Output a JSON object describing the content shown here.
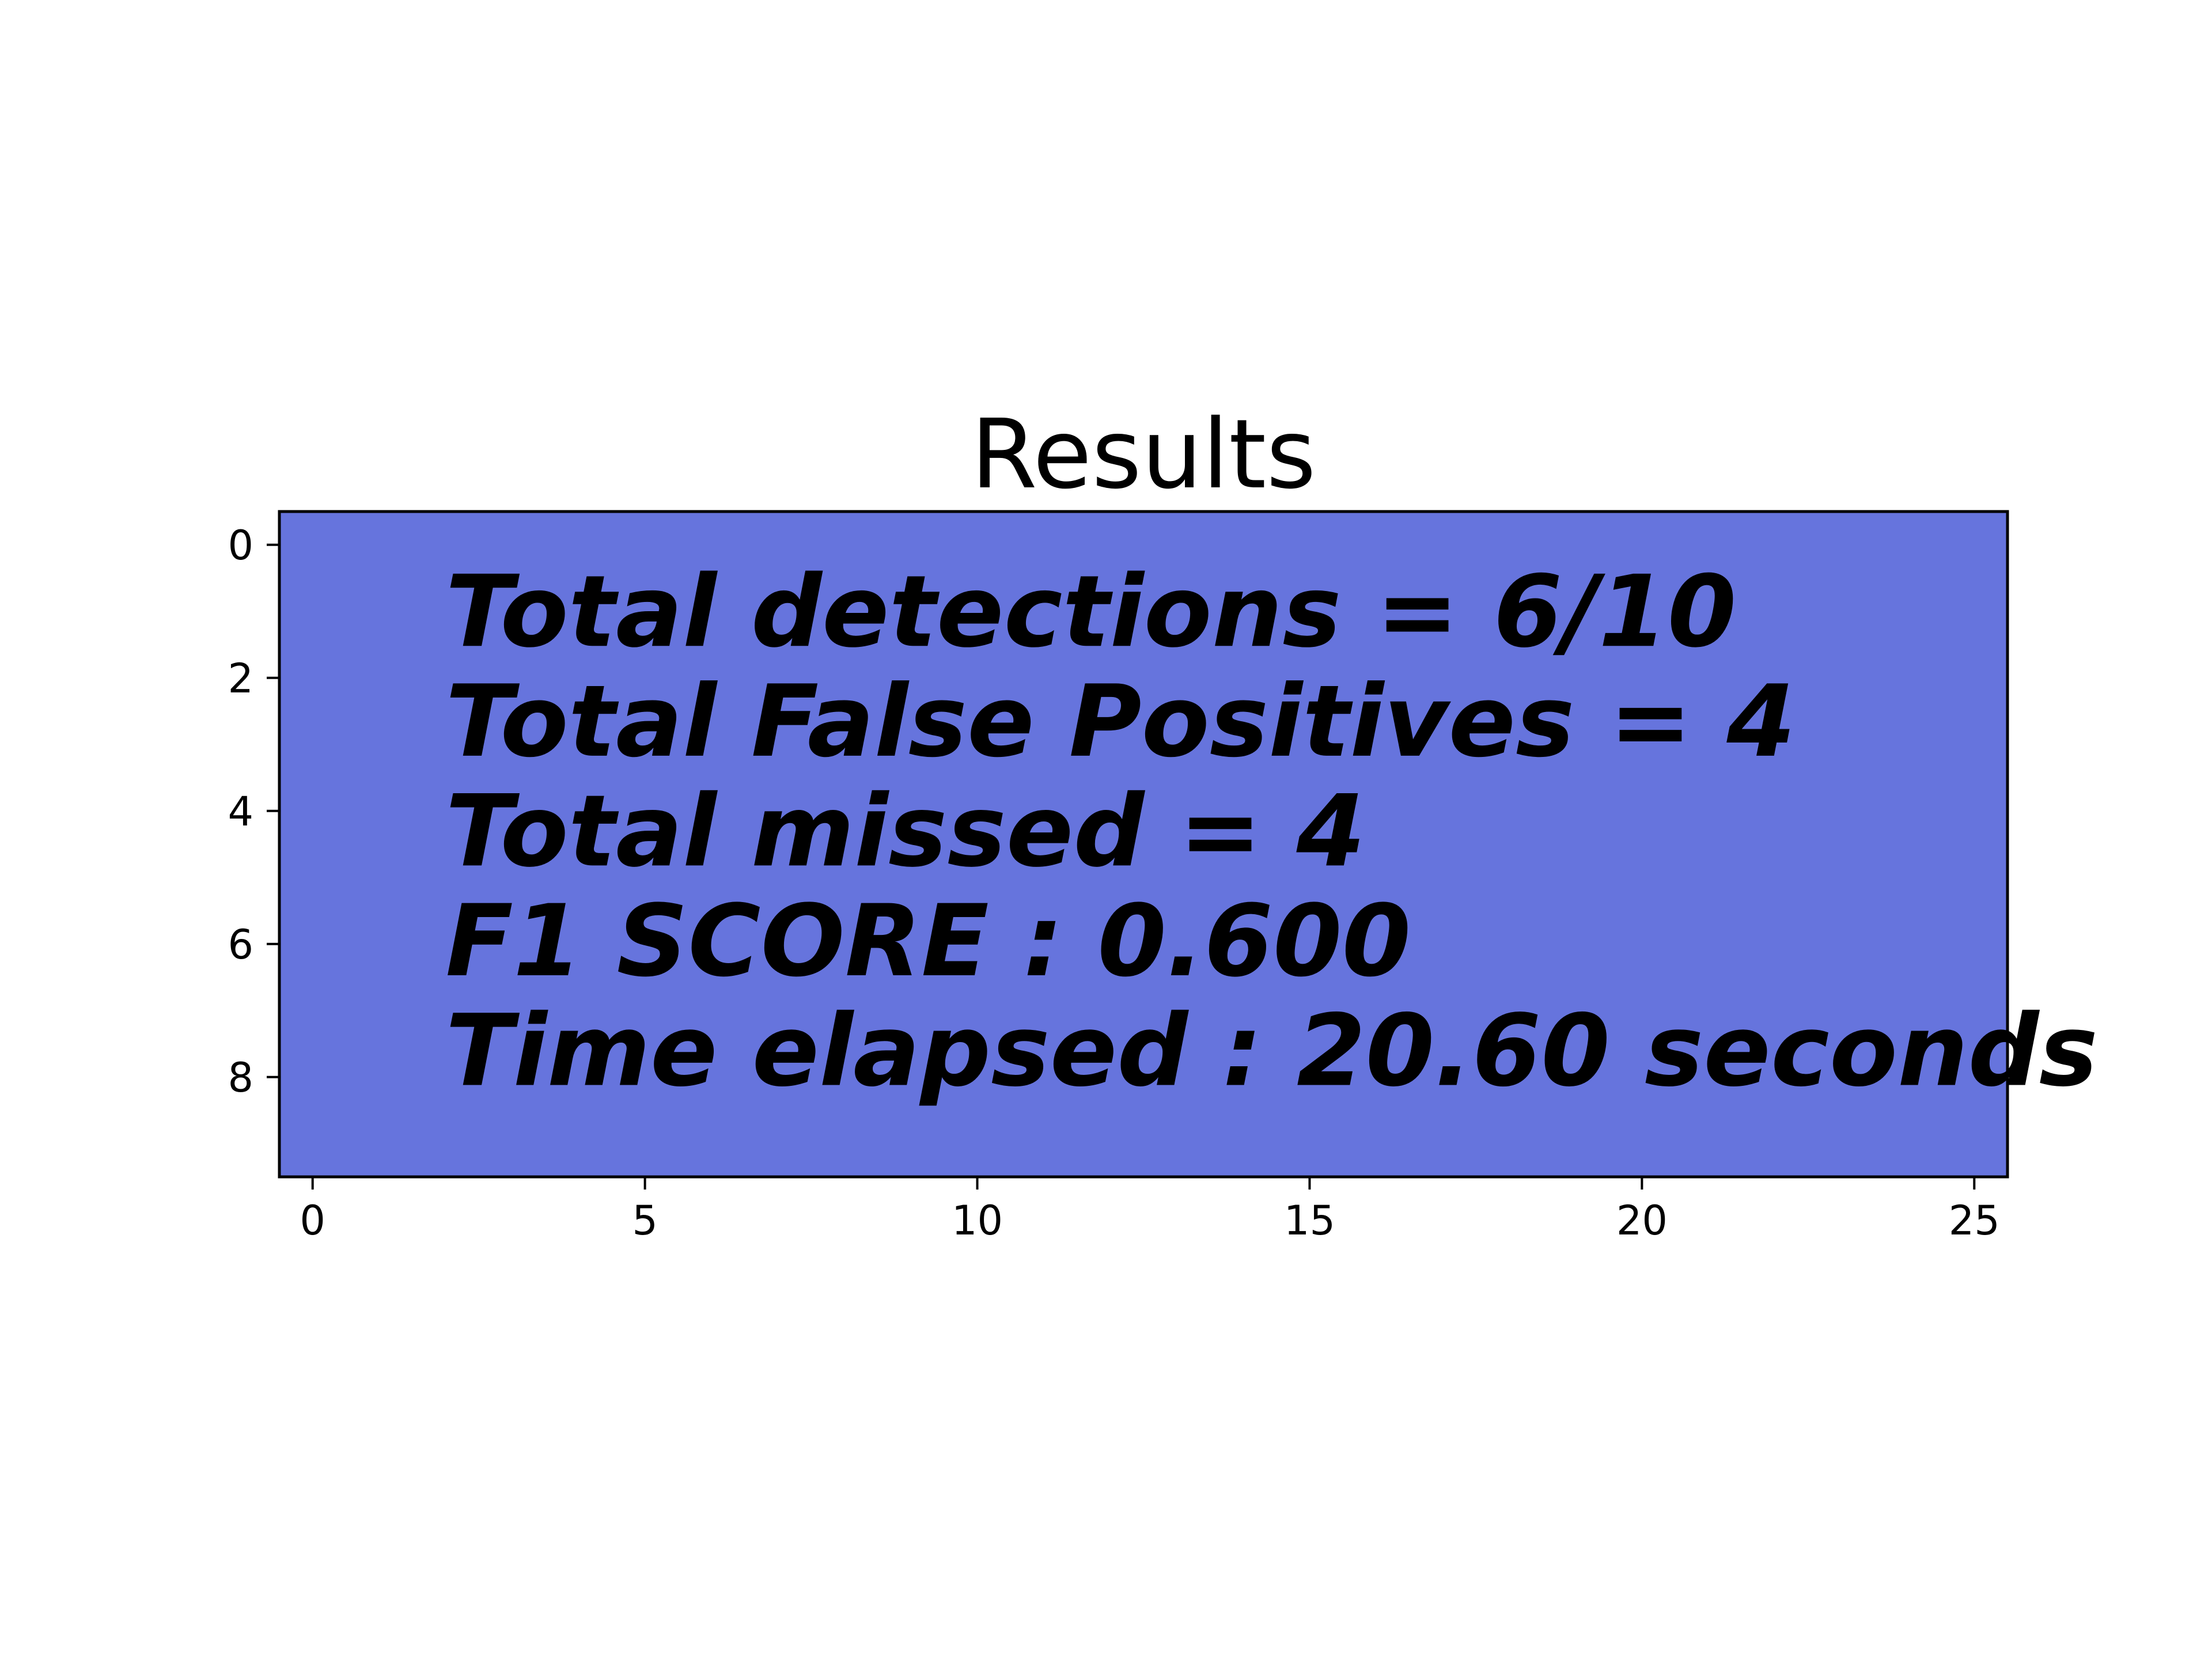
{
  "chart_data": {
    "type": "table",
    "title": "Results",
    "xlabel": "",
    "ylabel": "",
    "xlim": [
      -0.5,
      25.5
    ],
    "ylim": [
      9.5,
      -0.5
    ],
    "x_ticks": [
      0,
      5,
      10,
      15,
      20,
      25
    ],
    "x_tick_labels": [
      "0",
      "5",
      "10",
      "15",
      "20",
      "25"
    ],
    "y_ticks": [
      0,
      2,
      4,
      6,
      8
    ],
    "y_tick_labels": [
      "0",
      "2",
      "4",
      "6",
      "8"
    ],
    "y_inverted": true,
    "grid": false,
    "image_fill_color": "#6674dd",
    "annotations": [
      {
        "x": 2,
        "y": 1,
        "text": "Total detections = 6/10"
      },
      {
        "x": 2,
        "y": 2.65,
        "text": "Total False Positives = 4"
      },
      {
        "x": 2,
        "y": 4.3,
        "text": "Total missed = 4"
      },
      {
        "x": 2,
        "y": 5.95,
        "text": "F1 SCORE : 0.600"
      },
      {
        "x": 2,
        "y": 7.6,
        "text": "Time elapsed : 20.60 seconds"
      }
    ]
  }
}
